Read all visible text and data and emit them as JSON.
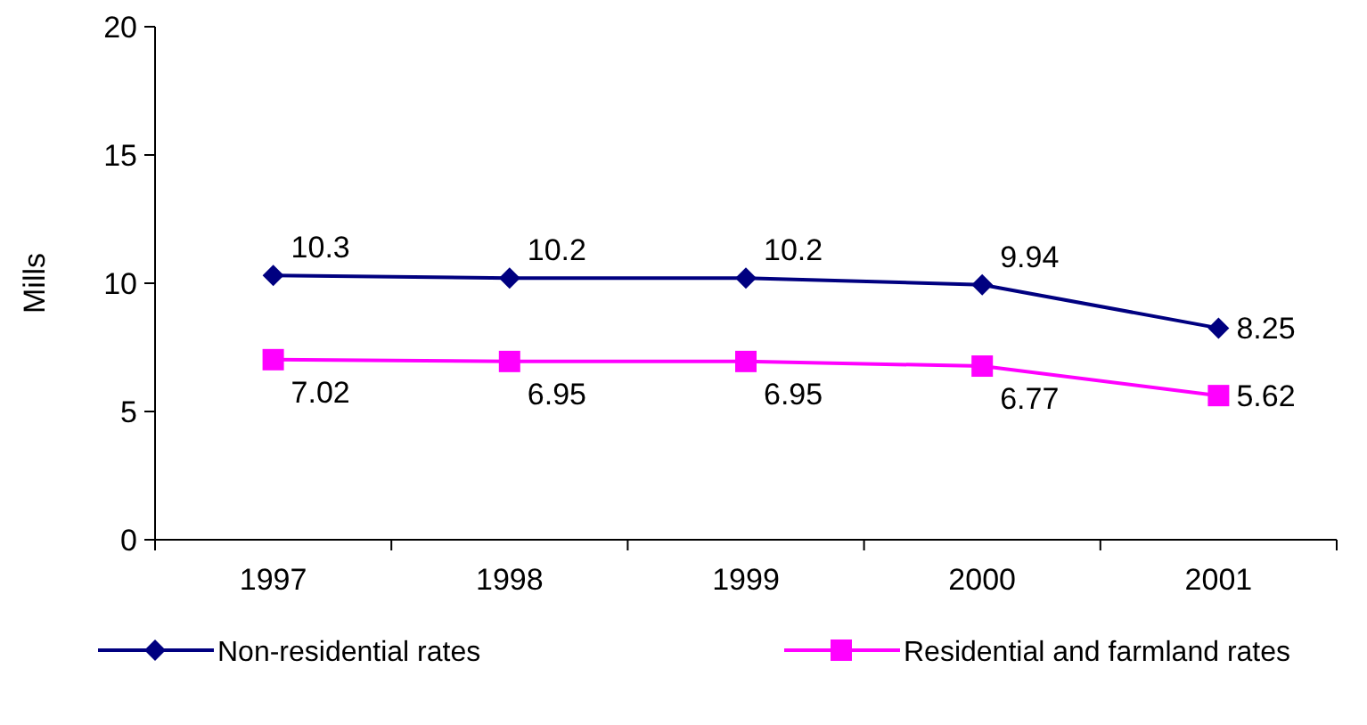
{
  "chart_data": {
    "type": "line",
    "ylabel": "Mills",
    "categories": [
      "1997",
      "1998",
      "1999",
      "2000",
      "2001"
    ],
    "series": [
      {
        "name": "Non-residential rates",
        "color": "#000080",
        "marker": "diamond",
        "values": [
          10.3,
          10.2,
          10.2,
          9.94,
          8.25
        ]
      },
      {
        "name": "Residential and farmland rates",
        "color": "#ff00ff",
        "marker": "square",
        "values": [
          7.02,
          6.95,
          6.95,
          6.77,
          5.62
        ]
      }
    ],
    "ylim": [
      0,
      20
    ],
    "yticks": [
      0,
      5,
      10,
      15,
      20
    ],
    "data_labels": true,
    "legend": "bottom",
    "grid": false
  }
}
